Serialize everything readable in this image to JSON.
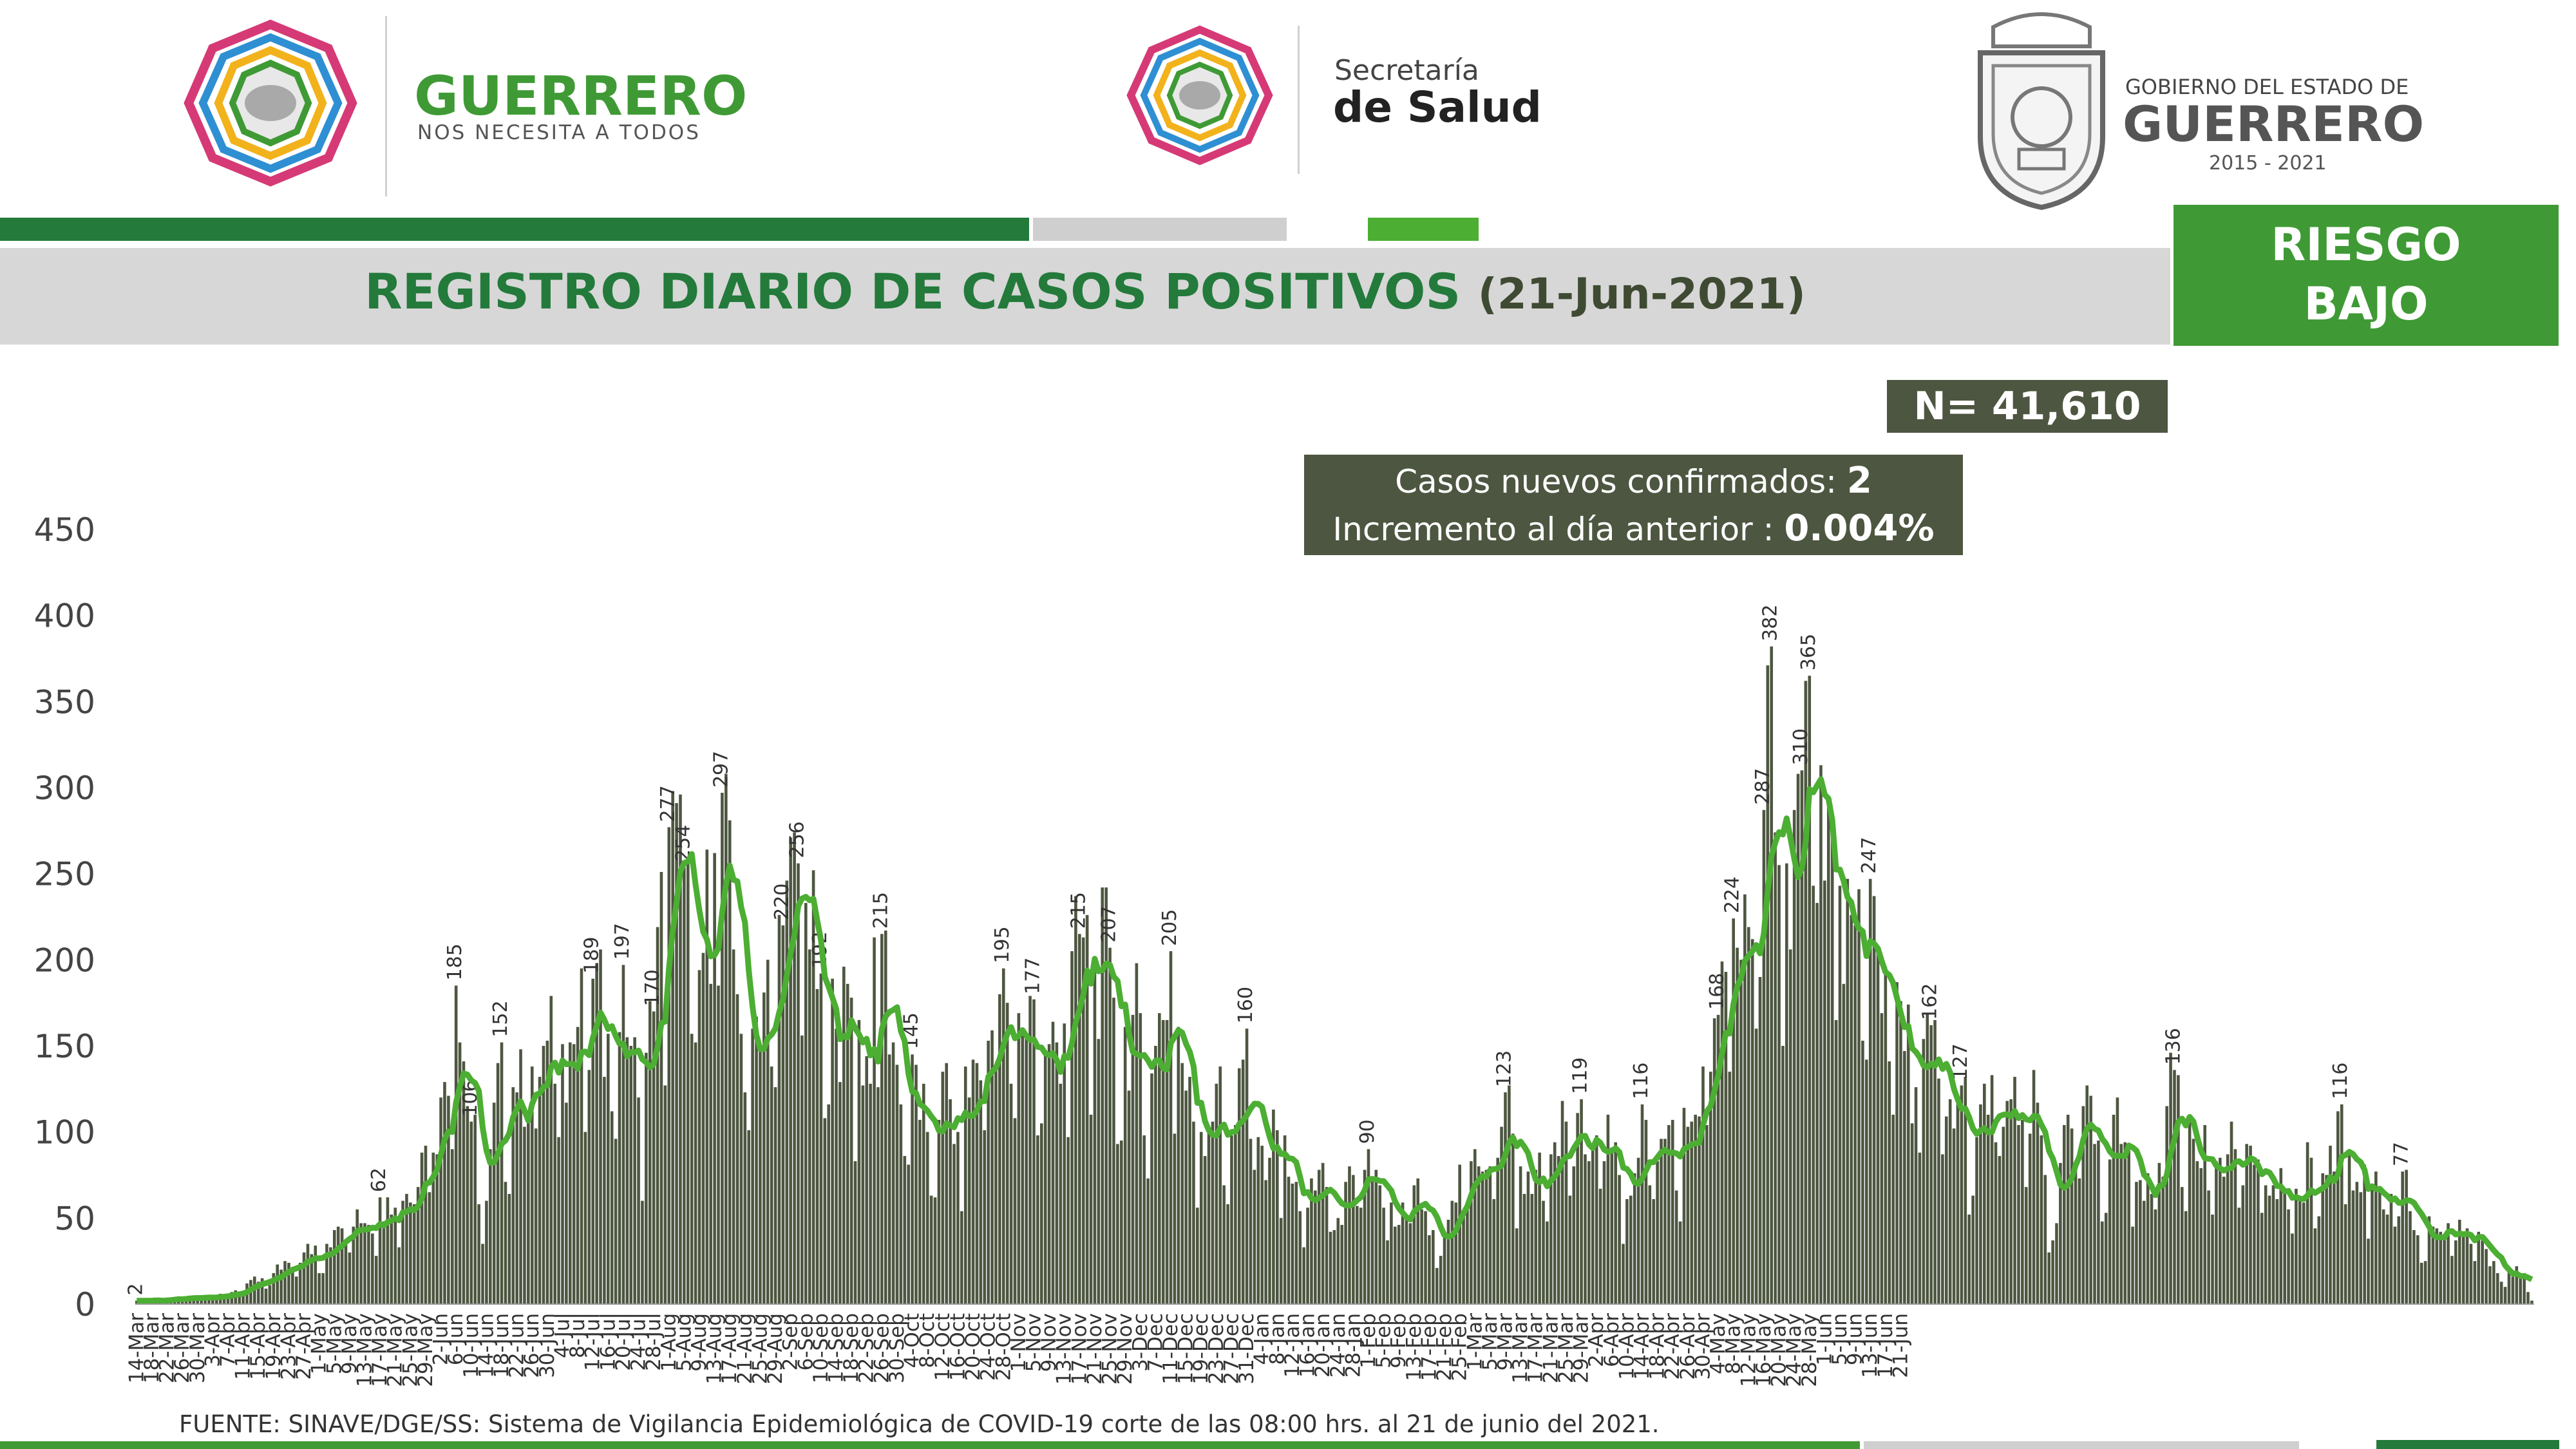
{
  "header": {
    "left_brand": "GUERRERO",
    "left_slogan": "NOS NECESITA A TODOS",
    "center_line1": "Secretaría",
    "center_line2": "de Salud",
    "right_line1": "GOBIERNO DEL ESTADO DE",
    "right_line2": "GUERRERO",
    "right_years": "2015 - 2021"
  },
  "title": "REGISTRO DIARIO DE CASOS POSITIVOS",
  "title_date": "(21-Jun-2021)",
  "risk_line1": "RIESGO",
  "risk_line2": "BAJO",
  "total": "N= 41,610",
  "new_cases_label": "Casos nuevos confirmados: ",
  "new_cases_value": "2",
  "increment_label": "Incremento al día anterior : ",
  "increment_value": "0.004%",
  "source": "FUENTE: SINAVE/DGE/SS: Sistema de Vigilancia Epidemiológica de COVID-19 corte de las 08:00 hrs. al 21 de junio del 2021.",
  "colors": {
    "dark_green": "#237a3b",
    "bright_green": "#3f9a35",
    "bar": "#4d5640",
    "band_gray": "#d7d7d7",
    "line": "#4cae32"
  },
  "chart_data": {
    "type": "bar",
    "y_ticks": [
      "0",
      "50",
      "100",
      "150",
      "200",
      "250",
      "300",
      "350",
      "400",
      "450"
    ],
    "ylim": [
      0,
      450
    ],
    "x_tick_labels": [
      "14-Mar",
      "18-Mar",
      "22-Mar",
      "26-Mar",
      "30-Mar",
      "3-Apr",
      "7-Apr",
      "11-Apr",
      "15-Apr",
      "19-Apr",
      "23-Apr",
      "27-Apr",
      "1-May",
      "5-May",
      "9-May",
      "13-May",
      "17-May",
      "21-May",
      "25-May",
      "29-May",
      "2-Jun",
      "6-Jun",
      "10-Jun",
      "14-Jun",
      "18-Jun",
      "22-Jun",
      "26-Jun",
      "30-Jun",
      "4-Jul",
      "8-Jul",
      "12-Jul",
      "16-Jul",
      "20-Jul",
      "24-Jul",
      "28-Jul",
      "1-Aug",
      "5-Aug",
      "9-Aug",
      "13-Aug",
      "17-Aug",
      "21-Aug",
      "25-Aug",
      "29-Aug",
      "2-Sep",
      "6-Sep",
      "10-Sep",
      "14-Sep",
      "18-Sep",
      "22-Sep",
      "26-Sep",
      "30-Sep",
      "4-Oct",
      "8-Oct",
      "12-Oct",
      "16-Oct",
      "20-Oct",
      "24-Oct",
      "28-Oct",
      "1-Nov",
      "5-Nov",
      "9-Nov",
      "13-Nov",
      "17-Nov",
      "21-Nov",
      "25-Nov",
      "29-Nov",
      "3-Dec",
      "7-Dec",
      "11-Dec",
      "15-Dec",
      "19-Dec",
      "23-Dec",
      "27-Dec",
      "31-Dec",
      "4-Jan",
      "8-Jan",
      "12-Jan",
      "16-Jan",
      "20-Jan",
      "24-Jan",
      "28-Jan",
      "1-Feb",
      "5-Feb",
      "9-Feb",
      "13-Feb",
      "17-Feb",
      "21-Feb",
      "25-Feb",
      "1-Mar",
      "5-Mar",
      "9-Mar",
      "13-Mar",
      "17-Mar",
      "21-Mar",
      "25-Mar",
      "29-Mar",
      "2-Apr",
      "6-Apr",
      "10-Apr",
      "14-Apr",
      "18-Apr",
      "22-Apr",
      "26-Apr",
      "30-Apr",
      "4-May",
      "8-May",
      "12-May",
      "16-May",
      "20-May",
      "24-May",
      "28-May",
      "1-Jun",
      "5-Jun",
      "9-Jun",
      "13-Jun",
      "17-Jun",
      "21-Jun"
    ],
    "series": [
      {
        "type": "bar",
        "anchors": [
          [
            0,
            2
          ],
          [
            8,
            3
          ],
          [
            16,
            4
          ],
          [
            24,
            6
          ],
          [
            30,
            14
          ],
          [
            36,
            18
          ],
          [
            44,
            30
          ],
          [
            52,
            43
          ],
          [
            58,
            55
          ],
          [
            64,
            62
          ],
          [
            70,
            60
          ],
          [
            76,
            92
          ],
          [
            80,
            120
          ],
          [
            84,
            185
          ],
          [
            88,
            106
          ],
          [
            92,
            60
          ],
          [
            96,
            152
          ],
          [
            100,
            123
          ],
          [
            104,
            138
          ],
          [
            108,
            153
          ],
          [
            112,
            151
          ],
          [
            116,
            161
          ],
          [
            120,
            189
          ],
          [
            124,
            157
          ],
          [
            128,
            197
          ],
          [
            132,
            120
          ],
          [
            136,
            170
          ],
          [
            140,
            277
          ],
          [
            144,
            254
          ],
          [
            148,
            194
          ],
          [
            152,
            262
          ],
          [
            154,
            297
          ],
          [
            158,
            180
          ],
          [
            162,
            160
          ],
          [
            166,
            200
          ],
          [
            170,
            220
          ],
          [
            174,
            256
          ],
          [
            176,
            233
          ],
          [
            180,
            192
          ],
          [
            184,
            160
          ],
          [
            188,
            178
          ],
          [
            192,
            144
          ],
          [
            196,
            215
          ],
          [
            200,
            139
          ],
          [
            204,
            145
          ],
          [
            208,
            100
          ],
          [
            212,
            135
          ],
          [
            216,
            100
          ],
          [
            220,
            142
          ],
          [
            224,
            153
          ],
          [
            228,
            195
          ],
          [
            232,
            169
          ],
          [
            236,
            177
          ],
          [
            240,
            151
          ],
          [
            244,
            163
          ],
          [
            248,
            215
          ],
          [
            252,
            198
          ],
          [
            256,
            207
          ],
          [
            260,
            161
          ],
          [
            264,
            169
          ],
          [
            268,
            150
          ],
          [
            272,
            205
          ],
          [
            276,
            124
          ],
          [
            280,
            100
          ],
          [
            284,
            128
          ],
          [
            288,
            98
          ],
          [
            292,
            160
          ],
          [
            296,
            92
          ],
          [
            300,
            101
          ],
          [
            304,
            70
          ],
          [
            308,
            56
          ],
          [
            312,
            82
          ],
          [
            316,
            50
          ],
          [
            320,
            75
          ],
          [
            324,
            90
          ],
          [
            328,
            56
          ],
          [
            332,
            46
          ],
          [
            336,
            69
          ],
          [
            340,
            40
          ],
          [
            344,
            39
          ],
          [
            348,
            81
          ],
          [
            352,
            90
          ],
          [
            356,
            80
          ],
          [
            360,
            123
          ],
          [
            364,
            80
          ],
          [
            368,
            78
          ],
          [
            372,
            87
          ],
          [
            376,
            106
          ],
          [
            380,
            119
          ],
          [
            384,
            98
          ],
          [
            388,
            91
          ],
          [
            392,
            61
          ],
          [
            396,
            116
          ],
          [
            400,
            83
          ],
          [
            404,
            107
          ],
          [
            408,
            103
          ],
          [
            412,
            138
          ],
          [
            416,
            168
          ],
          [
            420,
            224
          ],
          [
            424,
            219
          ],
          [
            428,
            287
          ],
          [
            430,
            382
          ],
          [
            434,
            256
          ],
          [
            438,
            310
          ],
          [
            440,
            365
          ],
          [
            444,
            246
          ],
          [
            448,
            243
          ],
          [
            452,
            220
          ],
          [
            456,
            247
          ],
          [
            460,
            196
          ],
          [
            464,
            176
          ],
          [
            468,
            126
          ],
          [
            472,
            162
          ],
          [
            476,
            109
          ],
          [
            480,
            127
          ],
          [
            484,
            97
          ],
          [
            488,
            133
          ],
          [
            492,
            118
          ],
          [
            496,
            107
          ],
          [
            500,
            117
          ],
          [
            504,
            37
          ],
          [
            508,
            110
          ],
          [
            512,
            115
          ],
          [
            516,
            95
          ],
          [
            520,
            110
          ],
          [
            524,
            91
          ],
          [
            528,
            60
          ],
          [
            532,
            82
          ],
          [
            536,
            136
          ],
          [
            540,
            109
          ],
          [
            544,
            104
          ],
          [
            548,
            85
          ],
          [
            552,
            90
          ],
          [
            556,
            92
          ],
          [
            560,
            69
          ],
          [
            564,
            79
          ],
          [
            568,
            67
          ],
          [
            572,
            85
          ],
          [
            576,
            75
          ],
          [
            580,
            116
          ],
          [
            584,
            71
          ],
          [
            588,
            69
          ],
          [
            592,
            52
          ],
          [
            596,
            77
          ],
          [
            600,
            40
          ],
          [
            604,
            45
          ],
          [
            608,
            47
          ],
          [
            612,
            41
          ],
          [
            616,
            42
          ],
          [
            620,
            25
          ],
          [
            624,
            20
          ],
          [
            628,
            18
          ],
          [
            630,
            2
          ]
        ]
      },
      {
        "type": "line",
        "name": "7-day moving average"
      }
    ]
  },
  "chart_labels": [
    {
      "value": "2",
      "at": 0
    },
    {
      "value": "62",
      "at": 64
    },
    {
      "value": "185",
      "at": 84
    },
    {
      "value": "106",
      "at": 88
    },
    {
      "value": "152",
      "at": 96
    },
    {
      "value": "189",
      "at": 120
    },
    {
      "value": "197",
      "at": 128
    },
    {
      "value": "170",
      "at": 136
    },
    {
      "value": "277",
      "at": 140
    },
    {
      "value": "254",
      "at": 144
    },
    {
      "value": "297",
      "at": 154
    },
    {
      "value": "220",
      "at": 170
    },
    {
      "value": "256",
      "at": 174
    },
    {
      "value": "192",
      "at": 180
    },
    {
      "value": "215",
      "at": 196
    },
    {
      "value": "145",
      "at": 204
    },
    {
      "value": "195",
      "at": 228
    },
    {
      "value": "177",
      "at": 236
    },
    {
      "value": "215",
      "at": 248
    },
    {
      "value": "207",
      "at": 256
    },
    {
      "value": "205",
      "at": 272
    },
    {
      "value": "160",
      "at": 292
    },
    {
      "value": "90",
      "at": 324
    },
    {
      "value": "123",
      "at": 360
    },
    {
      "value": "119",
      "at": 380
    },
    {
      "value": "116",
      "at": 396
    },
    {
      "value": "168",
      "at": 416
    },
    {
      "value": "224",
      "at": 420
    },
    {
      "value": "287",
      "at": 428
    },
    {
      "value": "382",
      "at": 430
    },
    {
      "value": "310",
      "at": 438
    },
    {
      "value": "365",
      "at": 440
    },
    {
      "value": "247",
      "at": 456
    },
    {
      "value": "162",
      "at": 472
    },
    {
      "value": "127",
      "at": 480
    },
    {
      "value": "136",
      "at": 536
    },
    {
      "value": "116",
      "at": 580
    },
    {
      "value": "77",
      "at": 596
    }
  ]
}
